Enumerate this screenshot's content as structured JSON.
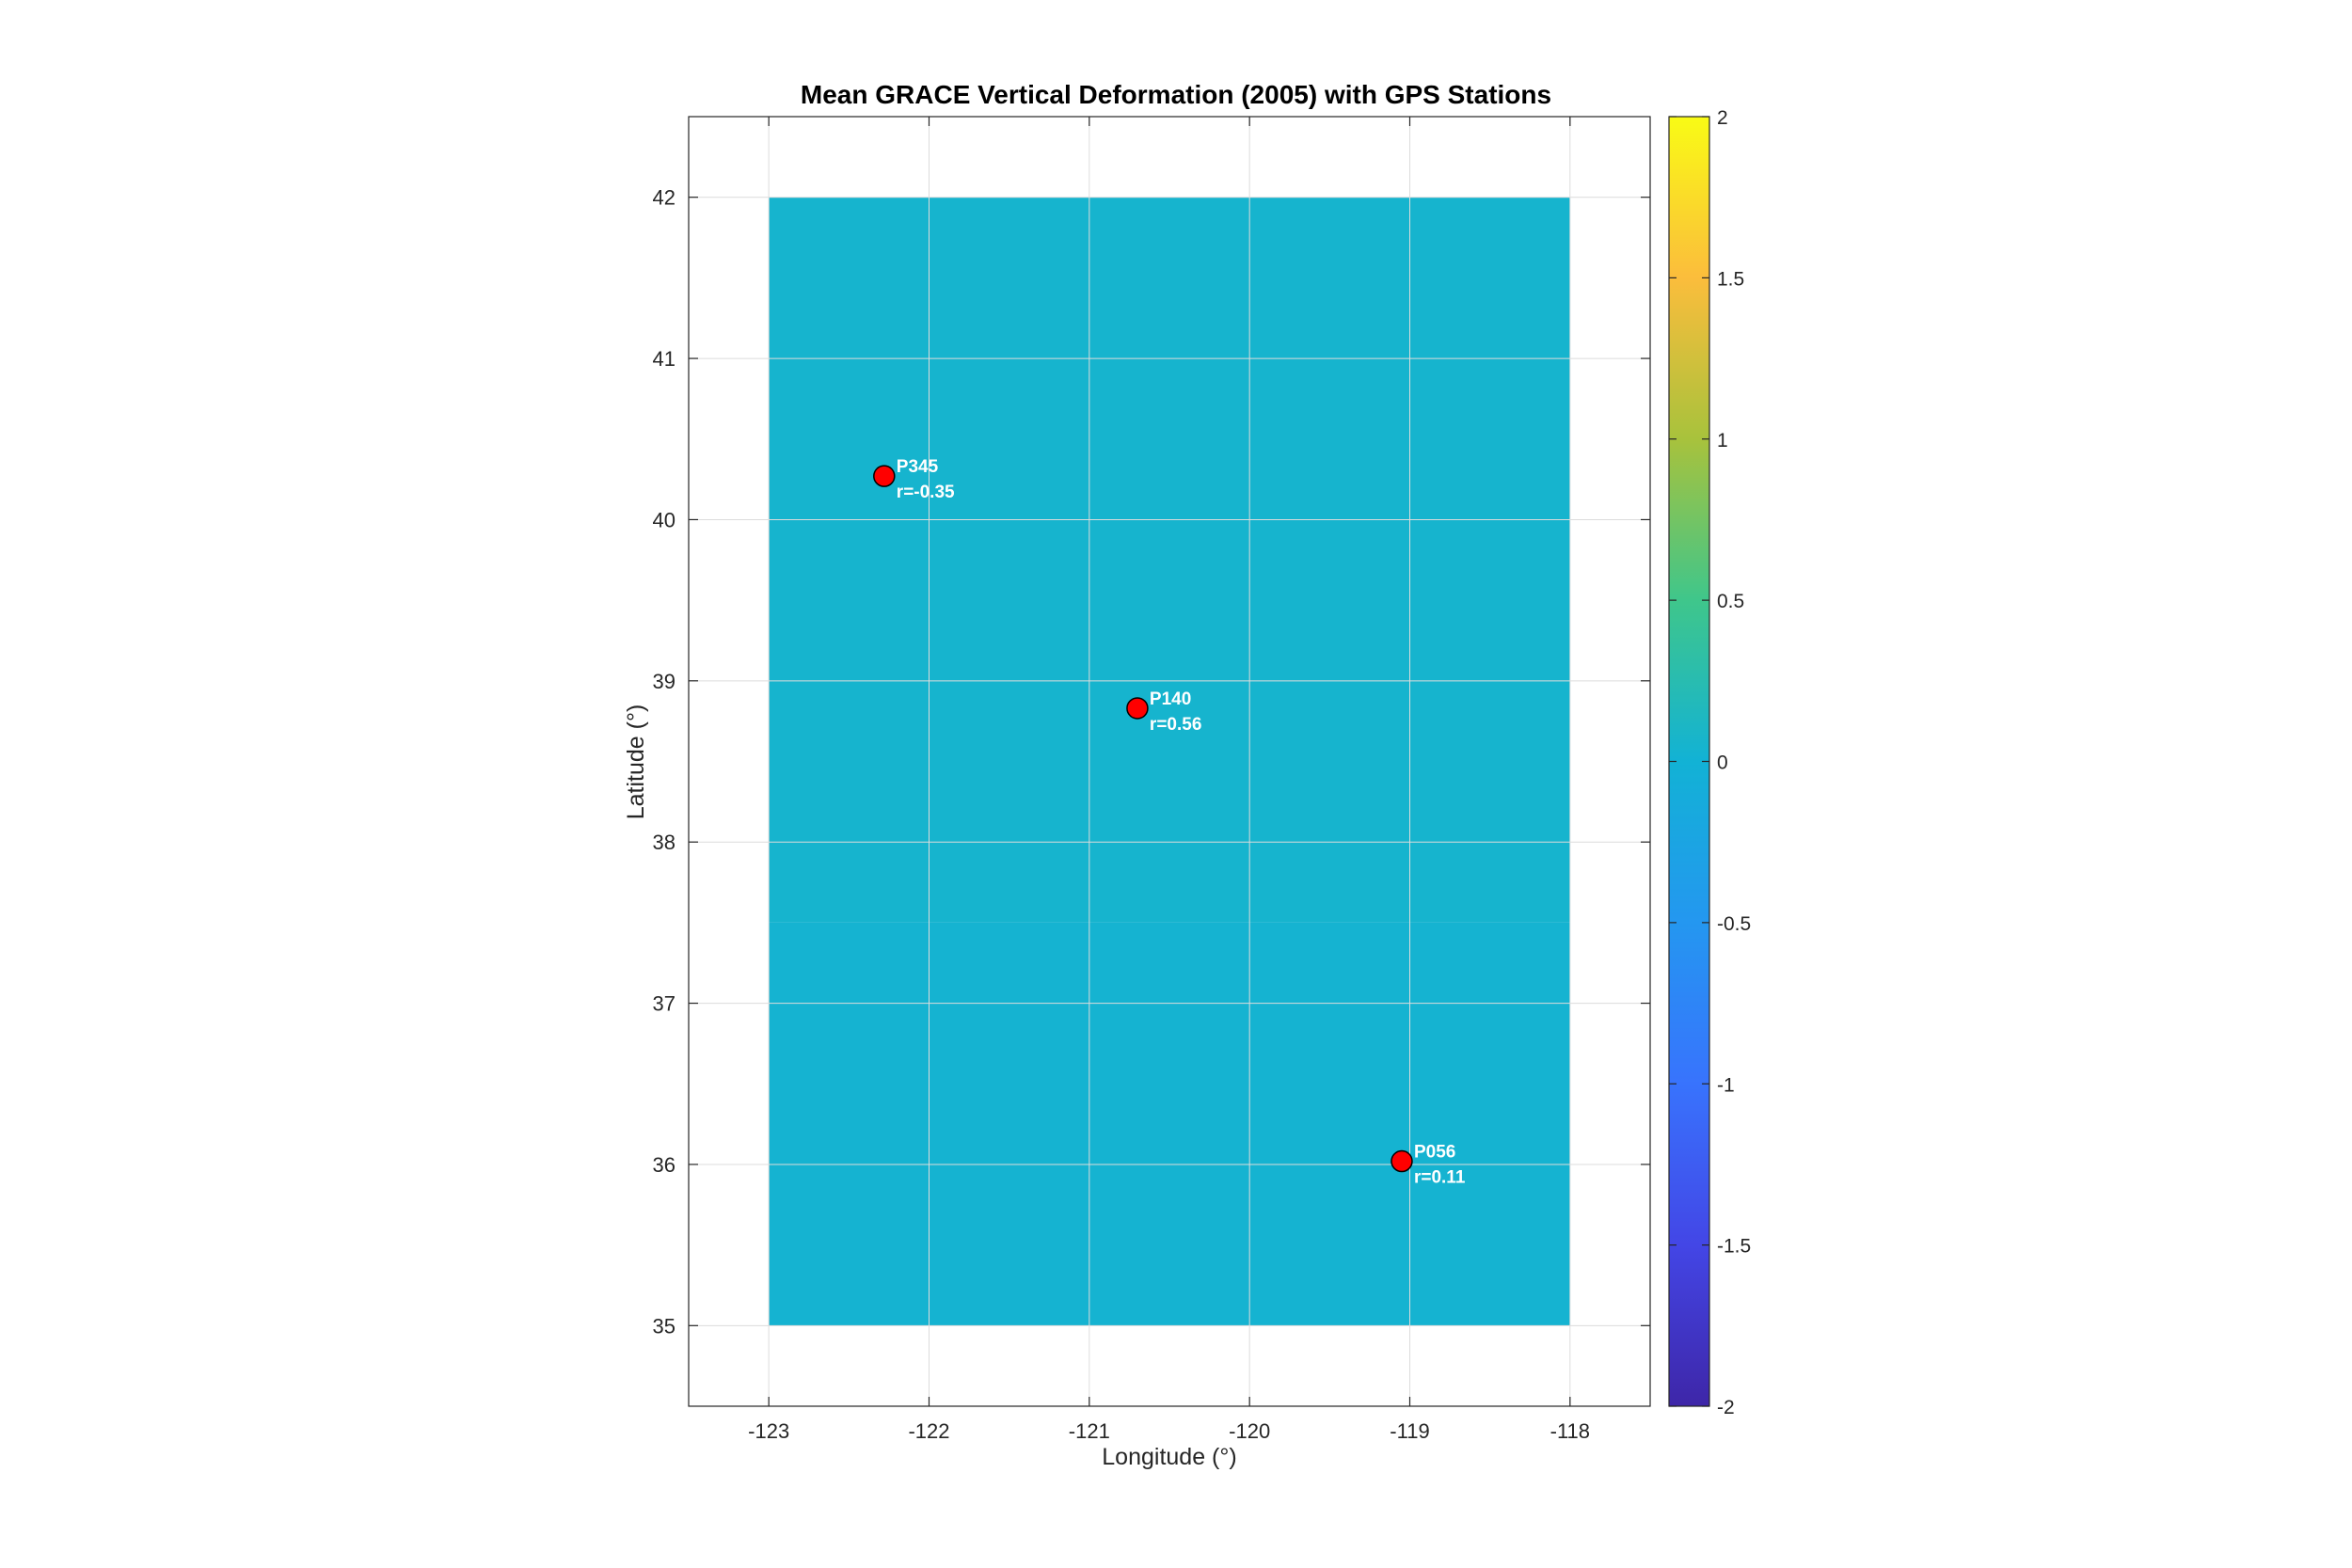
{
  "chart_data": {
    "type": "heatmap",
    "title": "Mean GRACE Vertical Deformation (2005) with GPS Stations",
    "xlabel": "Longitude (°)",
    "ylabel": "Latitude (°)",
    "xlim": [
      -123.5,
      -117.5
    ],
    "ylim": [
      34.5,
      42.5
    ],
    "xticks": [
      -123,
      -122,
      -121,
      -120,
      -119,
      -118
    ],
    "xtick_labels": [
      "-123",
      "-122",
      "-121",
      "-120",
      "-119",
      "-118"
    ],
    "yticks": [
      35,
      36,
      37,
      38,
      39,
      40,
      41,
      42
    ],
    "ytick_labels": [
      "35",
      "36",
      "37",
      "38",
      "39",
      "40",
      "41",
      "42"
    ],
    "grid": true,
    "field": {
      "lon_range": [
        -123,
        -118
      ],
      "lat_range": [
        35,
        42
      ],
      "rows": [
        {
          "lat_range": [
            37.5,
            42
          ],
          "value": 0.05
        },
        {
          "lat_range": [
            35,
            37.5
          ],
          "value": 0.03
        }
      ]
    },
    "colorbar": {
      "location": "right",
      "clim": [
        -2,
        2
      ],
      "ticks": [
        -2,
        -1.5,
        -1,
        -0.5,
        0,
        0.5,
        1,
        1.5,
        2
      ],
      "tick_labels": [
        "-2",
        "-1.5",
        "-1",
        "-0.5",
        "0",
        "0.5",
        "1",
        "1.5",
        "2"
      ],
      "colormap": "parula"
    },
    "stations": [
      {
        "name": "P345",
        "lon": -122.28,
        "lat": 40.27,
        "corr_label": "r=-0.35"
      },
      {
        "name": "P140",
        "lon": -120.7,
        "lat": 38.83,
        "corr_label": "r=0.56"
      },
      {
        "name": "P056",
        "lon": -119.05,
        "lat": 36.02,
        "corr_label": "r=0.11"
      }
    ],
    "marker_color": "#ff0000",
    "marker_edge_color": "#000000",
    "label_color": "#ffffff"
  }
}
